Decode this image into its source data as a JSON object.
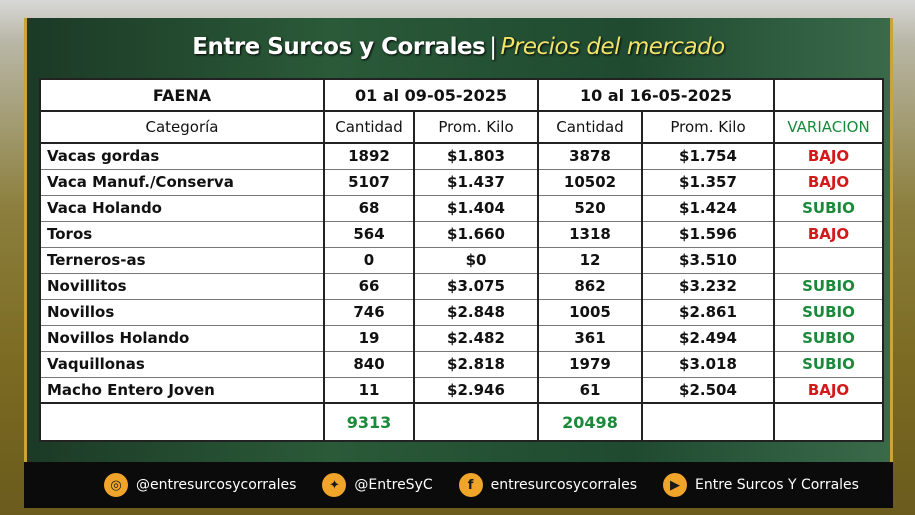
{
  "header": {
    "title_main": "Entre Surcos y Corrales",
    "separator": "|",
    "title_sub": "Precios del mercado"
  },
  "table": {
    "col_faena": "FAENA",
    "period1": "01 al 09-05-2025",
    "period2": "10 al 16-05-2025",
    "col_categoria": "Categoría",
    "col_cantidad_1": "Cantidad",
    "col_prom_1": "Prom. Kilo",
    "col_cantidad_2": "Cantidad",
    "col_prom_2": "Prom. Kilo",
    "col_variacion": "VARIACION",
    "rows": [
      {
        "cat": "Vacas gordas",
        "q1": "1892",
        "p1": "$1.803",
        "q2": "3878",
        "p2": "$1.754",
        "var": "BAJO"
      },
      {
        "cat": "Vaca Manuf./Conserva",
        "q1": "5107",
        "p1": "$1.437",
        "q2": "10502",
        "p2": "$1.357",
        "var": "BAJO"
      },
      {
        "cat": "Vaca Holando",
        "q1": "68",
        "p1": "$1.404",
        "q2": "520",
        "p2": "$1.424",
        "var": "SUBIO"
      },
      {
        "cat": "Toros",
        "q1": "564",
        "p1": "$1.660",
        "q2": "1318",
        "p2": "$1.596",
        "var": "BAJO"
      },
      {
        "cat": "Terneros-as",
        "q1": "0",
        "p1": "$0",
        "q2": "12",
        "p2": "$3.510",
        "var": ""
      },
      {
        "cat": "Novillitos",
        "q1": "66",
        "p1": "$3.075",
        "q2": "862",
        "p2": "$3.232",
        "var": "SUBIO"
      },
      {
        "cat": "Novillos",
        "q1": "746",
        "p1": "$2.848",
        "q2": "1005",
        "p2": "$2.861",
        "var": "SUBIO"
      },
      {
        "cat": "Novillos Holando",
        "q1": "19",
        "p1": "$2.482",
        "q2": "361",
        "p2": "$2.494",
        "var": "SUBIO"
      },
      {
        "cat": "Vaquillonas",
        "q1": "840",
        "p1": "$2.818",
        "q2": "1979",
        "p2": "$3.018",
        "var": "SUBIO"
      },
      {
        "cat": "Macho Entero Joven",
        "q1": "11",
        "p1": "$2.946",
        "q2": "61",
        "p2": "$2.504",
        "var": "BAJO"
      }
    ],
    "total_1": "9313",
    "total_2": "20498"
  },
  "colors": {
    "bajo": "#d11a1a",
    "subio": "#1a8a3a",
    "accent_gold": "#c8a53a",
    "title_sub": "#f2e36a"
  },
  "footer": {
    "socials": [
      {
        "icon": "instagram-icon",
        "glyph": "◎",
        "text": "@entresurcosycorrales"
      },
      {
        "icon": "twitter-icon",
        "glyph": "✦",
        "text": "@EntreSyC"
      },
      {
        "icon": "facebook-icon",
        "glyph": "f",
        "text": "entresurcosycorrales"
      },
      {
        "icon": "youtube-icon",
        "glyph": "▶",
        "text": "Entre Surcos Y Corrales"
      }
    ]
  }
}
